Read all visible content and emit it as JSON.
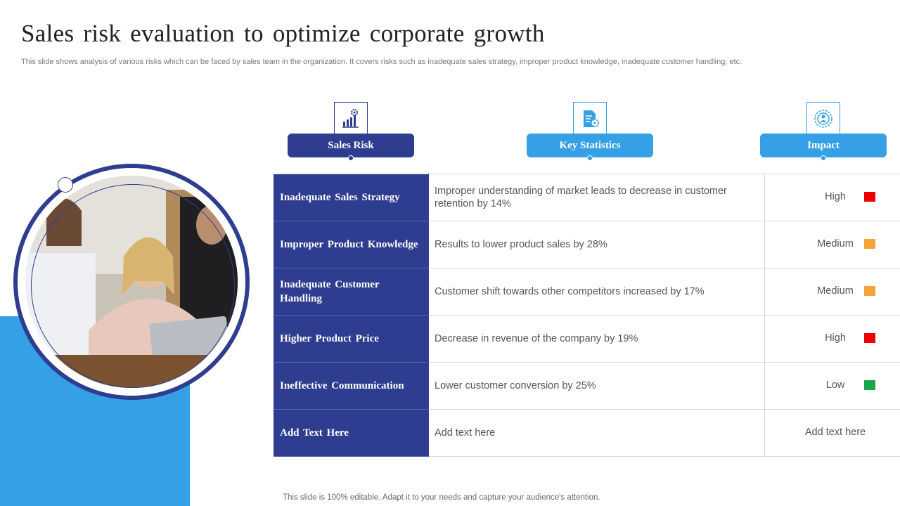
{
  "title": "Sales risk evaluation to optimize corporate growth",
  "subtitle": "This slide shows analysis of various risks which can be faced by sales team in the organization. It covers risks such as inadequate sales strategy, improper product knowledge, inadequate customer handling, etc.",
  "headers": [
    {
      "label": "Sales Risk",
      "color": "#2e3d8f",
      "icon": "bar-chart-gear-icon"
    },
    {
      "label": "Key Statistics",
      "color": "#35a0e6",
      "icon": "document-gear-icon"
    },
    {
      "label": "Impact",
      "color": "#35a0e6",
      "icon": "target-person-icon"
    }
  ],
  "rows": [
    {
      "risk": "Inadequate Sales Strategy",
      "stat": "Improper understanding of market leads to decrease in customer retention by 14%",
      "impact": "High",
      "impact_color": "#ee0000"
    },
    {
      "risk": "Improper Product Knowledge",
      "stat": "Results to lower product sales by 28%",
      "impact": "Medium",
      "impact_color": "#f5a33a"
    },
    {
      "risk": "Inadequate Customer Handling",
      "stat": "Customer shift towards other competitors increased by 17%",
      "impact": "Medium",
      "impact_color": "#f5a33a"
    },
    {
      "risk": "Higher Product Price",
      "stat": "Decrease in revenue of the company by 19%",
      "impact": "High",
      "impact_color": "#ee0000"
    },
    {
      "risk": "Ineffective Communication",
      "stat": "Lower customer conversion by 25%",
      "impact": "Low",
      "impact_color": "#1aa64a"
    },
    {
      "risk": "Add Text Here",
      "stat": "Add text here",
      "impact": "Add text here",
      "impact_color": ""
    }
  ],
  "footer": "This slide is 100% editable. Adapt it to your needs and capture your audience's attention.",
  "colors": {
    "navy": "#2e3d8f",
    "blue": "#35a0e6"
  }
}
